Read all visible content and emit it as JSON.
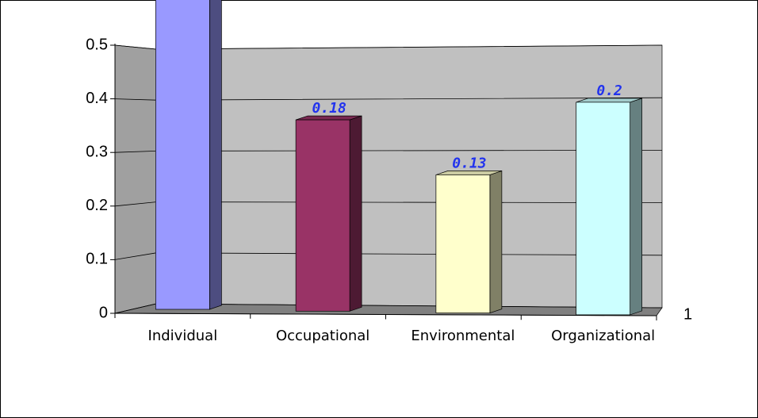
{
  "chart_data": {
    "type": "bar3d",
    "categories": [
      "Individual",
      "Occupational",
      "Environmental",
      "Organizational"
    ],
    "values": [
      0.47,
      0.18,
      0.13,
      0.2
    ],
    "colors": [
      "#9999ff",
      "#993366",
      "#ffffcc",
      "#ccffff"
    ],
    "ylim": [
      0,
      0.5
    ],
    "yticks": [
      0,
      0.1,
      0.2,
      0.3,
      0.4,
      0.5
    ],
    "grid": true,
    "depth_label": "1"
  }
}
